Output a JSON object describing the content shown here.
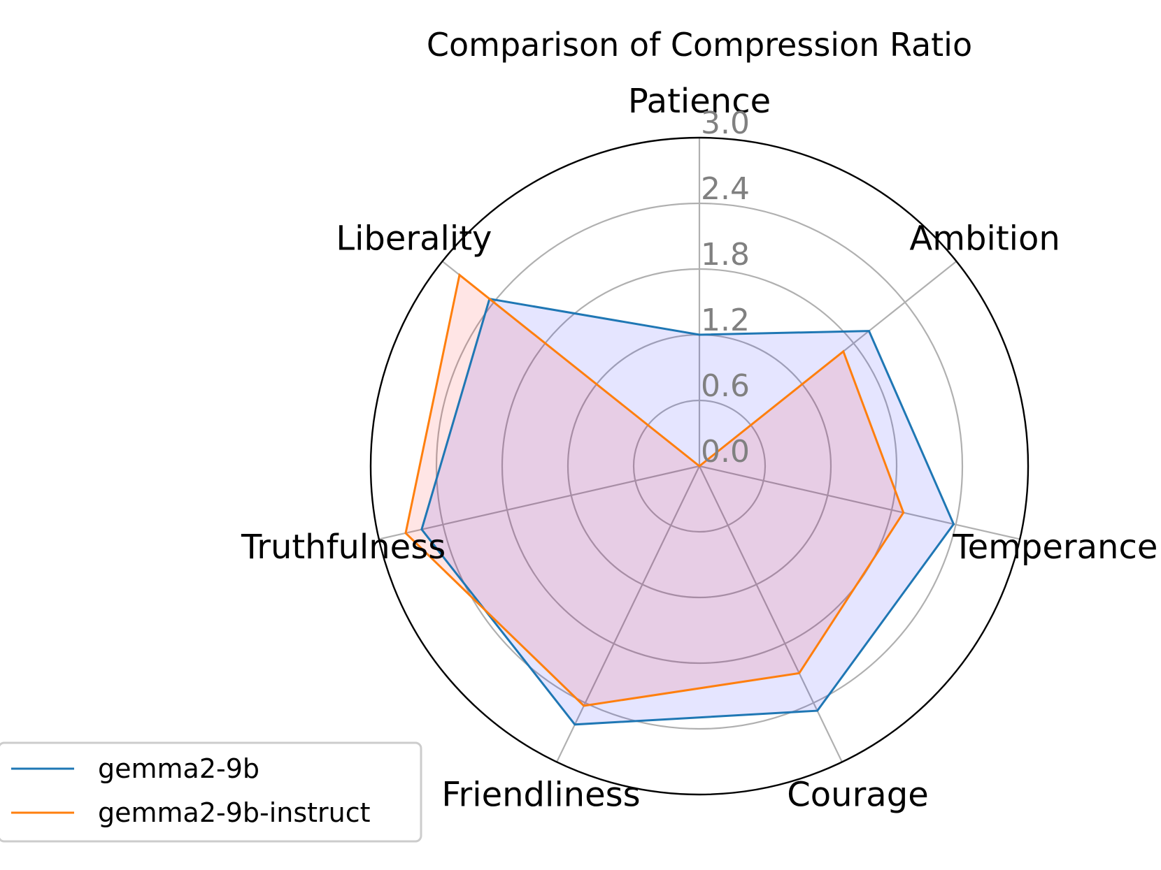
{
  "chart_data": {
    "type": "radar",
    "title": "Comparison of Compression Ratio",
    "categories": [
      "Patience",
      "Ambition",
      "Temperance",
      "Courage",
      "Friendliness",
      "Truthfulness",
      "Liberality"
    ],
    "rticks": [
      "0.0",
      "0.6",
      "1.2",
      "1.8",
      "2.4",
      "3.0"
    ],
    "rlim": [
      0,
      3.0
    ],
    "grid": true,
    "legend_position": "lower-left",
    "series": [
      {
        "name": "gemma2-9b",
        "color": "#1f77b4",
        "fill": "#0000ff",
        "fill_opacity": 0.1,
        "values": [
          1.2,
          1.98,
          2.38,
          2.48,
          2.62,
          2.6,
          2.45
        ]
      },
      {
        "name": "gemma2-9b-instruct",
        "color": "#ff7f0e",
        "fill": "#ff0000",
        "fill_opacity": 0.1,
        "values": [
          0.0,
          1.68,
          1.91,
          2.1,
          2.43,
          2.75,
          2.8
        ]
      }
    ]
  }
}
